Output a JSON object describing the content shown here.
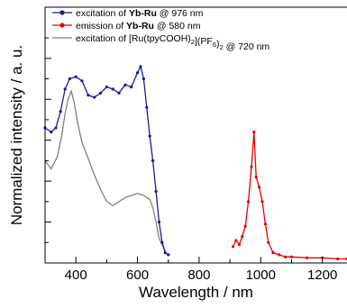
{
  "chart_data": {
    "type": "line",
    "xlabel": "Wavelength / nm",
    "ylabel": "Normalized intensity / a. u.",
    "xlim": [
      300,
      1280
    ],
    "x_ticks": [
      400,
      600,
      800,
      1000,
      1200
    ],
    "ylim": [
      0,
      1.25
    ],
    "y_tick_labels_shown": false,
    "grid": false,
    "legend_position": "top-left",
    "legend": [
      {
        "parts": [
          {
            "t": "excitation of ",
            "b": false
          },
          {
            "t": "Yb-Ru",
            "b": true
          },
          {
            "t": " @ 976 nm",
            "b": false
          }
        ]
      },
      {
        "parts": [
          {
            "t": "emission of ",
            "b": false
          },
          {
            "t": "Yb-Ru",
            "b": true
          },
          {
            "t": " @ 580 nm",
            "b": false
          }
        ]
      },
      {
        "parts": [
          {
            "t": "excitation of [Ru(tpyCOOH)",
            "b": false
          },
          {
            "t": "2",
            "sub": true
          },
          {
            "t": "](PF",
            "b": false
          },
          {
            "t": "6",
            "sub": true
          },
          {
            "t": ")",
            "b": false
          },
          {
            "t": "2",
            "sub": true
          },
          {
            "t": " @ 720 nm",
            "b": false
          }
        ]
      }
    ],
    "series": [
      {
        "color": "#1a1a9c",
        "marker": "circle",
        "x": [
          300,
          320,
          335,
          350,
          365,
          380,
          400,
          420,
          440,
          460,
          480,
          500,
          520,
          540,
          560,
          580,
          600,
          610,
          620,
          630,
          640,
          650,
          660,
          670,
          680,
          690,
          700
        ],
        "y": [
          0.66,
          0.64,
          0.66,
          0.74,
          0.85,
          0.9,
          0.91,
          0.89,
          0.82,
          0.81,
          0.83,
          0.86,
          0.85,
          0.83,
          0.87,
          0.86,
          0.93,
          0.96,
          0.9,
          0.76,
          0.62,
          0.5,
          0.35,
          0.2,
          0.1,
          0.05,
          0.04
        ]
      },
      {
        "color": "#e60000",
        "marker": "circle",
        "x": [
          910,
          920,
          930,
          940,
          950,
          960,
          970,
          978,
          985,
          995,
          1005,
          1015,
          1025,
          1040,
          1060,
          1080,
          1100,
          1150,
          1200,
          1250,
          1280
        ],
        "y": [
          0.08,
          0.11,
          0.09,
          0.13,
          0.18,
          0.3,
          0.47,
          0.64,
          0.42,
          0.37,
          0.3,
          0.19,
          0.1,
          0.05,
          0.04,
          0.03,
          0.03,
          0.025,
          0.025,
          0.02,
          0.02
        ]
      },
      {
        "color": "#808080",
        "marker": "none",
        "x": [
          300,
          320,
          340,
          355,
          365,
          375,
          385,
          395,
          405,
          420,
          440,
          460,
          480,
          500,
          520,
          540,
          560,
          580,
          600,
          620,
          640,
          650,
          660,
          670,
          690
        ],
        "y": [
          0.5,
          0.46,
          0.52,
          0.63,
          0.73,
          0.8,
          0.84,
          0.78,
          0.69,
          0.59,
          0.51,
          0.43,
          0.36,
          0.3,
          0.28,
          0.3,
          0.32,
          0.33,
          0.34,
          0.33,
          0.31,
          0.27,
          0.2,
          0.12,
          0.06
        ]
      }
    ]
  }
}
